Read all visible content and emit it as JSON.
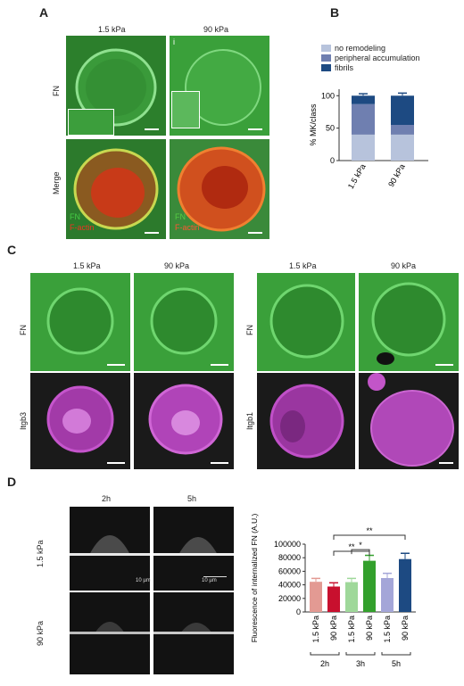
{
  "panels": {
    "A": "A",
    "B": "B",
    "C": "C",
    "D": "D"
  },
  "panelA": {
    "col1": "1.5 kPa",
    "col2": "90 kPa",
    "row1": "FN",
    "row2": "Merge",
    "legend_fn": "FN",
    "legend_factin": "F-actin",
    "inset_mark": "i"
  },
  "panelC": {
    "left_col1": "1.5 kPa",
    "left_col2": "90 kPa",
    "right_col1": "1.5 kPa",
    "right_col2": "90 kPa",
    "left_row1": "FN",
    "left_row2": "Itgb3",
    "right_row1": "FN",
    "right_row2": "Itgb1"
  },
  "panelD": {
    "col1": "2h",
    "col2": "5h",
    "row1": "1.5 kPa",
    "row2": "90 kPa",
    "scale1": "10 µm",
    "scale2": "10 µm"
  },
  "chart_data": [
    {
      "type": "bar",
      "stacked": true,
      "categories": [
        "1.5 kPa",
        "90 kPa"
      ],
      "series": [
        {
          "name": "no remodeling",
          "values": [
            40,
            40
          ],
          "color": "#b7c3dc"
        },
        {
          "name": "peripheral accumulation",
          "values": [
            47,
            15
          ],
          "color": "#6f7fb0"
        },
        {
          "name": "fibrils",
          "values": [
            13,
            45
          ],
          "color": "#1d4a82"
        }
      ],
      "error_tops": [
        103,
        104
      ],
      "ylabel": "% MK/class",
      "yticks": [
        0,
        50,
        100
      ],
      "ylim": [
        0,
        110
      ],
      "legend_position": "top"
    },
    {
      "type": "bar",
      "categories": [
        "1.5 kPa",
        "90 kPa",
        "1.5 kPa",
        "90 kPa",
        "1.5 kPa",
        "90 kPa"
      ],
      "values": [
        44500,
        37500,
        44000,
        75500,
        50000,
        78000
      ],
      "errors": [
        5000,
        5500,
        5500,
        8000,
        7000,
        8500
      ],
      "colors": [
        "#e39a93",
        "#c8102e",
        "#9fd89a",
        "#33a02c",
        "#a4a6d8",
        "#1d4a82"
      ],
      "groups": [
        "2h",
        "3h",
        "5h"
      ],
      "ylabel": "Fluorescence of internalized FN (A.U.)",
      "yticks": [
        0,
        20000,
        40000,
        60000,
        80000,
        100000
      ],
      "ytick_labels": [
        "0",
        "20000",
        "40000",
        "60000",
        "80000",
        "100000"
      ],
      "ylim": [
        0,
        100000
      ],
      "significance": [
        "**",
        "**",
        "*"
      ]
    }
  ]
}
